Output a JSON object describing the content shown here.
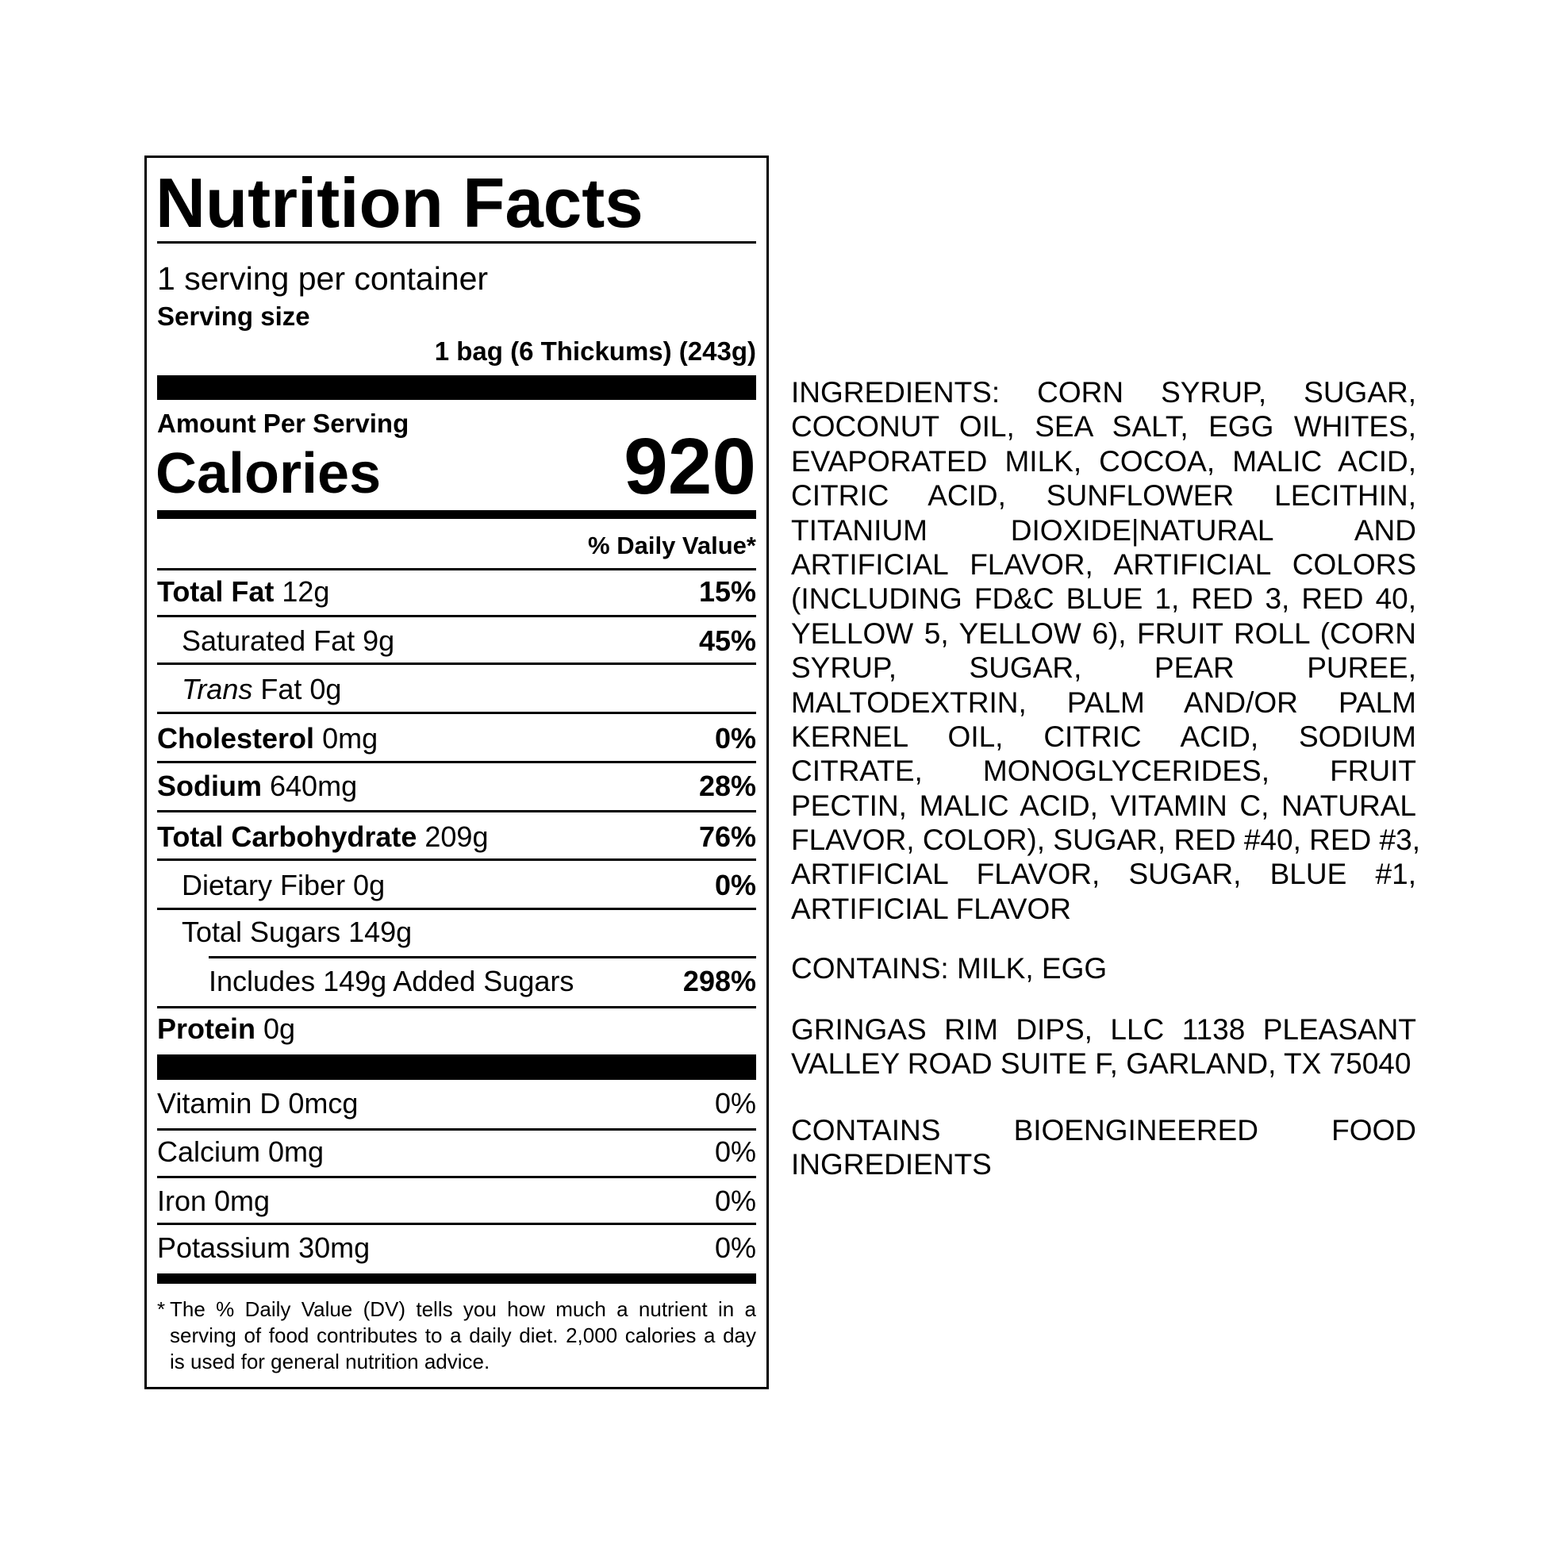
{
  "label": {
    "title": "Nutrition Facts",
    "servings_per_container": "1 serving per container",
    "serving_size_label": "Serving size",
    "serving_size_value": "1 bag (6 Thickums) (243g)",
    "amount_per_serving": "Amount Per Serving",
    "calories_label": "Calories",
    "calories_value": "920",
    "daily_value_header": "% Daily Value*",
    "nutrients": [
      {
        "name": "Total Fat",
        "amount": "12g",
        "dv": "15%"
      },
      {
        "name": "Saturated Fat 9g",
        "amount": "",
        "dv": "45%"
      },
      {
        "name_italic": "Trans",
        "name": "Fat 0g",
        "dv": ""
      },
      {
        "name": "Cholesterol",
        "amount": "0mg",
        "dv": "0%"
      },
      {
        "name": "Sodium",
        "amount": "640mg",
        "dv": "28%"
      },
      {
        "name": "Total Carbohydrate",
        "amount": "209g",
        "dv": "76%"
      },
      {
        "name": "Dietary Fiber 0g",
        "amount": "",
        "dv": "0%"
      },
      {
        "name": "Total Sugars 149g",
        "amount": "",
        "dv": ""
      },
      {
        "name": "Includes 149g Added Sugars",
        "amount": "",
        "dv": "298%"
      },
      {
        "name": "Protein",
        "amount": "0g",
        "dv": ""
      }
    ],
    "vitamins": [
      {
        "name": "Vitamin D 0mcg",
        "dv": "0%"
      },
      {
        "name": "Calcium 0mg",
        "dv": "0%"
      },
      {
        "name": "Iron 0mg",
        "dv": "0%"
      },
      {
        "name": "Potassium 30mg",
        "dv": "0%"
      }
    ],
    "footnote_marker": "*",
    "footnote_lines": [
      "The % Daily Value (DV) tells you how much a nutrient in a",
      "serving of food contributes to a daily diet. 2,000 calories a day",
      "is used for general nutrition advice."
    ]
  },
  "ingredients": {
    "lines": [
      "INGREDIENTS: CORN SYRUP, SUGAR,",
      "COCONUT OIL, SEA SALT, EGG WHITES,",
      "EVAPORATED MILK, COCOA, MALIC ACID,",
      "CITRIC ACID, SUNFLOWER LECITHIN,",
      "TITANIUM DIOXIDE|NATURAL AND",
      "ARTIFICIAL FLAVOR, ARTIFICIAL COLORS",
      "(INCLUDING FD&C BLUE 1, RED 3, RED 40,",
      "YELLOW 5, YELLOW 6), FRUIT ROLL (CORN",
      "SYRUP, SUGAR, PEAR PUREE,",
      "MALTODEXTRIN, PALM AND/OR PALM",
      "KERNEL OIL, CITRIC ACID, SODIUM",
      "CITRATE, MONOGLYCERIDES, FRUIT",
      "PECTIN, MALIC ACID, VITAMIN C, NATURAL",
      "FLAVOR, COLOR), SUGAR, RED #40, RED #3,",
      "ARTIFICIAL FLAVOR, SUGAR, BLUE #1,",
      "ARTIFICIAL FLAVOR"
    ],
    "contains": "CONTAINS: MILK, EGG",
    "manufacturer_lines": [
      "GRINGAS RIM DIPS, LLC 1138 PLEASANT",
      "VALLEY ROAD SUITE F, GARLAND, TX 75040"
    ],
    "bioengineered_lines": [
      "CONTAINS BIOENGINEERED FOOD",
      "INGREDIENTS"
    ]
  }
}
